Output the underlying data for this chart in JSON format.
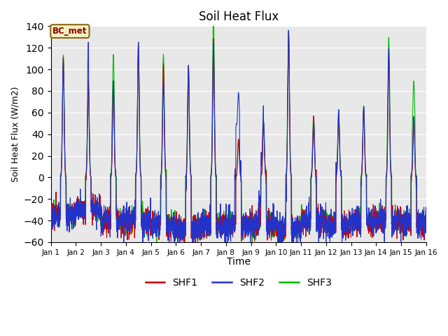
{
  "title": "Soil Heat Flux",
  "ylabel": "Soil Heat Flux (W/m2)",
  "xlabel": "Time",
  "ylim": [
    -60,
    140
  ],
  "bg_color": "#e8e8e8",
  "legend_label": "BC_met",
  "legend_box_facecolor": "#f5f0c0",
  "legend_box_edgecolor": "#8b6914",
  "series_colors": [
    "#cc0000",
    "#2233cc",
    "#00bb00"
  ],
  "series_names": [
    "SHF1",
    "SHF2",
    "SHF3"
  ],
  "n_days": 15,
  "ppd": 144,
  "yticks": [
    -60,
    -40,
    -20,
    0,
    20,
    40,
    60,
    80,
    100,
    120,
    140
  ],
  "xtick_labels": [
    "Jan 1",
    "Jan 2",
    "Jan 3",
    "Jan 4",
    "Jan 5",
    "Jan 6",
    "Jan 7",
    "Jan 8",
    "Jan 9",
    "Jan 10",
    "Jan 11",
    "Jan 12",
    "Jan 13",
    "Jan 14",
    "Jan 15",
    "Jan 16"
  ],
  "figsize": [
    6.4,
    4.8
  ],
  "dpi": 100
}
